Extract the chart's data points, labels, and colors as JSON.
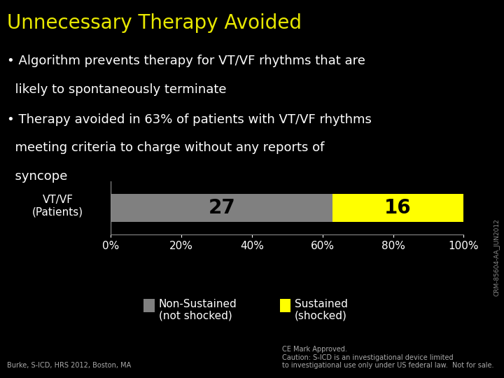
{
  "title": "Unnecessary Therapy Avoided",
  "background_color": "#000000",
  "title_color": "#e8e800",
  "title_fontsize": 20,
  "bullet1_line1": "• Algorithm prevents therapy for VT/VF rhythms that are",
  "bullet1_line2": "  likely to spontaneously terminate",
  "bullet2_line1": "• Therapy avoided in 63% of patients with VT/VF rhythms",
  "bullet2_line2": "  meeting criteria to charge without any reports of",
  "bullet2_line3": "  syncope",
  "bullet_color": "#ffffff",
  "bullet_fontsize": 13,
  "bar_label": "VT/VF\n(Patients)",
  "bar_label_color": "#ffffff",
  "bar_label_fontsize": 11,
  "bar_gray_value": 27,
  "bar_yellow_value": 16,
  "bar_gray_color": "#808080",
  "bar_yellow_color": "#ffff00",
  "bar_gray_pct": 62.8,
  "bar_yellow_pct": 37.2,
  "bar_text_color": "#000000",
  "bar_text_fontsize": 20,
  "axis_color": "#888888",
  "tick_color": "#ffffff",
  "tick_fontsize": 11,
  "xticks": [
    0,
    20,
    40,
    60,
    80,
    100
  ],
  "xlim": [
    0,
    100
  ],
  "legend_gray_label": "Non-Sustained\n(not shocked)",
  "legend_yellow_label": "Sustained\n(shocked)",
  "legend_fontsize": 11,
  "footer_left": "Burke, S-ICD, HRS 2012, Boston, MA",
  "footer_right_1": "CE Mark Approved.",
  "footer_right_2": "Caution: S-ICD is an investigational device limited",
  "footer_right_3": "to investigational use only under US federal law.  Not for sale.",
  "footer_color": "#aaaaaa",
  "footer_fontsize": 7,
  "side_text": "CRM-85604-AA_JUN2012",
  "side_text_color": "#888888",
  "side_text_fontsize": 6.5
}
